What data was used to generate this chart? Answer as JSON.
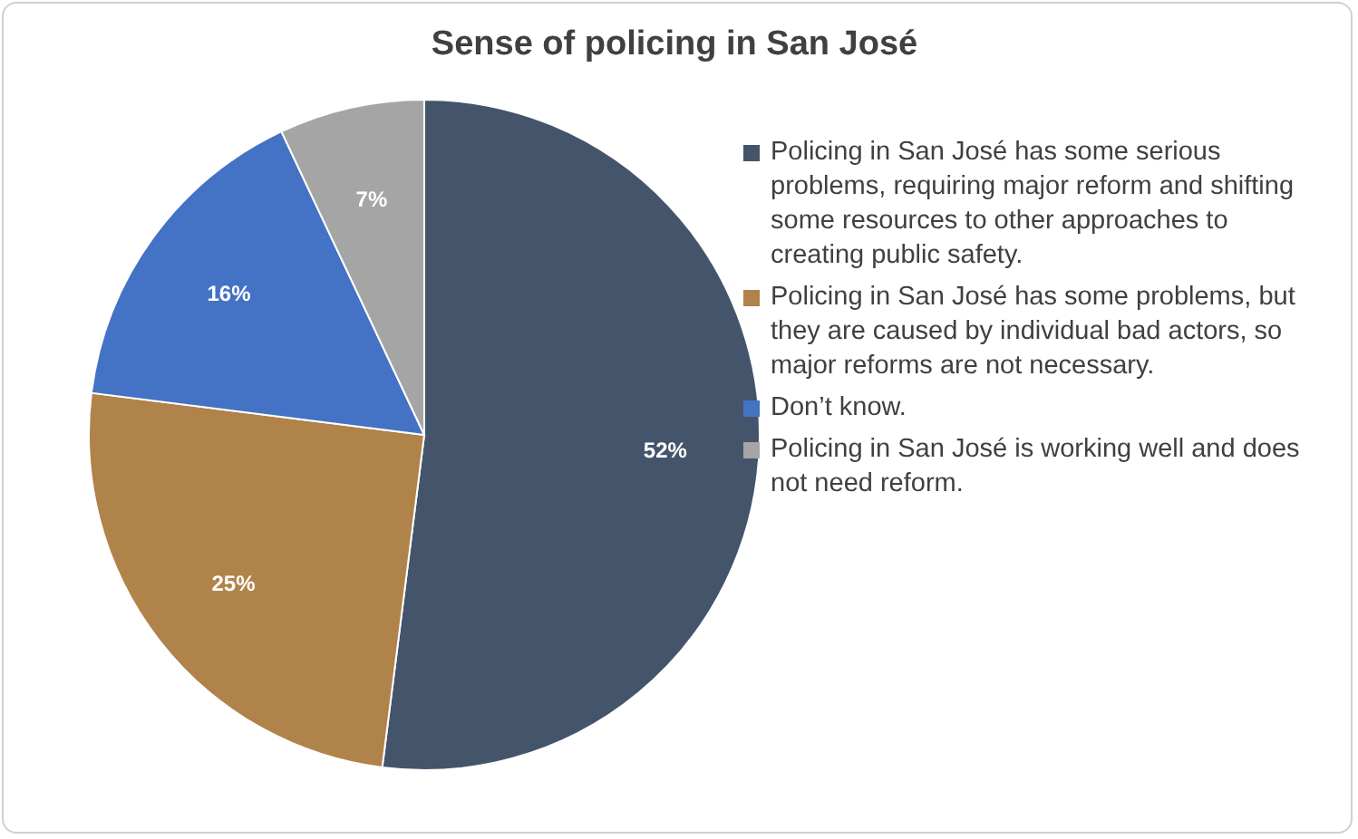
{
  "chart_data": {
    "type": "pie",
    "title": "Sense of policing in San José",
    "categories": [
      "Policing in San José has some serious problems, requiring major reform and shifting some resources to other approaches to creating public safety.",
      "Policing in San José has some problems, but they are caused by individual bad actors, so major reforms are not necessary.",
      "Don’t know.",
      "Policing in San José is working well and does not need reform."
    ],
    "values": [
      52,
      25,
      16,
      7
    ],
    "colors": [
      "#44546a",
      "#b0834a",
      "#4472c4",
      "#a5a5a5"
    ],
    "value_labels": [
      "52%",
      "25%",
      "16%",
      "7%"
    ],
    "legend": "right"
  }
}
